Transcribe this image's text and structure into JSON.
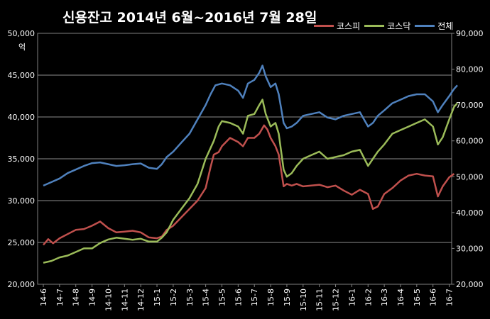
{
  "chart_data": {
    "type": "line",
    "title": "신용잔고 2014년 6월~2016년 7월 28일",
    "unit_label": "억",
    "categories": [
      "14-6",
      "14-7",
      "14-8",
      "14-9",
      "14-10",
      "14-11",
      "14-12",
      "15-1",
      "15-2",
      "15-3",
      "15-4",
      "15-5",
      "15-6",
      "15-7",
      "15-8",
      "15-9",
      "15-10",
      "15-11",
      "15-12",
      "16-1",
      "16-2",
      "16-3",
      "16-4",
      "16-5",
      "16-6",
      "16-7"
    ],
    "left_axis": {
      "min": 20000,
      "max": 50000,
      "ticks": [
        "20,000",
        "25,000",
        "30,000",
        "35,000",
        "40,000",
        "45,000",
        "50,000"
      ]
    },
    "right_axis": {
      "min": 20000,
      "max": 90000,
      "ticks": [
        "20,000",
        "30,000",
        "40,000",
        "50,000",
        "60,000",
        "70,000",
        "80,000",
        "90,000"
      ]
    },
    "grid": true,
    "legend_position": "top-right",
    "series": [
      {
        "name": "코스피",
        "color": "#c0504d",
        "axis": "left",
        "points": [
          [
            0,
            24700
          ],
          [
            0.3,
            25400
          ],
          [
            0.6,
            24900
          ],
          [
            1,
            25500
          ],
          [
            1.5,
            26000
          ],
          [
            2,
            26500
          ],
          [
            2.5,
            26600
          ],
          [
            3,
            27000
          ],
          [
            3.5,
            27500
          ],
          [
            4,
            26700
          ],
          [
            4.5,
            26200
          ],
          [
            5,
            26300
          ],
          [
            5.5,
            26400
          ],
          [
            6,
            26200
          ],
          [
            6.5,
            25600
          ],
          [
            7,
            25500
          ],
          [
            7.3,
            25700
          ],
          [
            7.6,
            26500
          ],
          [
            8,
            27000
          ],
          [
            8.5,
            28000
          ],
          [
            9,
            29000
          ],
          [
            9.5,
            30000
          ],
          [
            10,
            31500
          ],
          [
            10.3,
            34000
          ],
          [
            10.5,
            35500
          ],
          [
            10.8,
            35800
          ],
          [
            11,
            36500
          ],
          [
            11.5,
            37500
          ],
          [
            12,
            37000
          ],
          [
            12.3,
            36500
          ],
          [
            12.6,
            37500
          ],
          [
            13,
            37500
          ],
          [
            13.3,
            38000
          ],
          [
            13.6,
            39000
          ],
          [
            13.8,
            38500
          ],
          [
            14,
            37500
          ],
          [
            14.3,
            36500
          ],
          [
            14.5,
            35500
          ],
          [
            14.8,
            31700
          ],
          [
            15,
            32000
          ],
          [
            15.3,
            31800
          ],
          [
            15.6,
            32000
          ],
          [
            16,
            31700
          ],
          [
            16.5,
            31800
          ],
          [
            17,
            31900
          ],
          [
            17.5,
            31600
          ],
          [
            18,
            31800
          ],
          [
            18.5,
            31200
          ],
          [
            19,
            30700
          ],
          [
            19.5,
            31300
          ],
          [
            20,
            30800
          ],
          [
            20.3,
            29000
          ],
          [
            20.6,
            29300
          ],
          [
            21,
            30800
          ],
          [
            21.5,
            31500
          ],
          [
            22,
            32400
          ],
          [
            22.5,
            33000
          ],
          [
            23,
            33200
          ],
          [
            23.5,
            33000
          ],
          [
            24,
            32900
          ],
          [
            24.3,
            30500
          ],
          [
            24.6,
            31700
          ],
          [
            25,
            32800
          ],
          [
            25.3,
            33200
          ]
        ]
      },
      {
        "name": "코스닥",
        "color": "#9bbb59",
        "axis": "right",
        "points": [
          [
            0,
            26000
          ],
          [
            0.5,
            26500
          ],
          [
            1,
            27500
          ],
          [
            1.5,
            28000
          ],
          [
            2,
            29000
          ],
          [
            2.5,
            30000
          ],
          [
            3,
            30000
          ],
          [
            3.5,
            31500
          ],
          [
            4,
            32500
          ],
          [
            4.5,
            33000
          ],
          [
            5,
            32700
          ],
          [
            5.5,
            32400
          ],
          [
            6,
            32700
          ],
          [
            6.5,
            31900
          ],
          [
            7,
            31900
          ],
          [
            7.3,
            33000
          ],
          [
            7.6,
            34500
          ],
          [
            8,
            38000
          ],
          [
            8.5,
            41000
          ],
          [
            9,
            44000
          ],
          [
            9.5,
            48000
          ],
          [
            10,
            55000
          ],
          [
            10.5,
            60000
          ],
          [
            10.8,
            64000
          ],
          [
            11,
            65500
          ],
          [
            11.5,
            65000
          ],
          [
            12,
            64000
          ],
          [
            12.3,
            62000
          ],
          [
            12.6,
            67000
          ],
          [
            13,
            67500
          ],
          [
            13.3,
            70000
          ],
          [
            13.5,
            71500
          ],
          [
            13.7,
            67500
          ],
          [
            14,
            64000
          ],
          [
            14.3,
            65000
          ],
          [
            14.5,
            62000
          ],
          [
            14.8,
            52000
          ],
          [
            15,
            50000
          ],
          [
            15.3,
            51000
          ],
          [
            15.6,
            53000
          ],
          [
            16,
            55000
          ],
          [
            16.5,
            56000
          ],
          [
            17,
            57000
          ],
          [
            17.5,
            55000
          ],
          [
            18,
            55500
          ],
          [
            18.5,
            56000
          ],
          [
            19,
            57000
          ],
          [
            19.5,
            57500
          ],
          [
            20,
            53000
          ],
          [
            20.3,
            55000
          ],
          [
            20.6,
            57000
          ],
          [
            21,
            59000
          ],
          [
            21.5,
            62000
          ],
          [
            22,
            63000
          ],
          [
            22.5,
            64000
          ],
          [
            23,
            65000
          ],
          [
            23.5,
            66000
          ],
          [
            24,
            64000
          ],
          [
            24.3,
            59000
          ],
          [
            24.6,
            61000
          ],
          [
            25,
            66000
          ],
          [
            25.3,
            69500
          ],
          [
            25.5,
            70500
          ]
        ]
      },
      {
        "name": "전체",
        "color": "#4f81bd",
        "axis": "right",
        "points": [
          [
            0,
            47500
          ],
          [
            0.5,
            48500
          ],
          [
            1,
            49500
          ],
          [
            1.5,
            51000
          ],
          [
            2,
            52000
          ],
          [
            2.5,
            53000
          ],
          [
            3,
            53800
          ],
          [
            3.5,
            54000
          ],
          [
            4,
            53500
          ],
          [
            4.5,
            53000
          ],
          [
            5,
            53200
          ],
          [
            5.5,
            53500
          ],
          [
            6,
            53700
          ],
          [
            6.5,
            52500
          ],
          [
            7,
            52200
          ],
          [
            7.3,
            53500
          ],
          [
            7.6,
            55500
          ],
          [
            8,
            57000
          ],
          [
            8.5,
            59500
          ],
          [
            9,
            62000
          ],
          [
            9.5,
            66000
          ],
          [
            10,
            70000
          ],
          [
            10.3,
            73000
          ],
          [
            10.6,
            75500
          ],
          [
            11,
            76000
          ],
          [
            11.5,
            75500
          ],
          [
            12,
            74000
          ],
          [
            12.3,
            72000
          ],
          [
            12.6,
            76000
          ],
          [
            13,
            77000
          ],
          [
            13.3,
            79000
          ],
          [
            13.5,
            81000
          ],
          [
            13.7,
            78000
          ],
          [
            14,
            75000
          ],
          [
            14.3,
            76000
          ],
          [
            14.5,
            73000
          ],
          [
            14.8,
            65000
          ],
          [
            15,
            63500
          ],
          [
            15.3,
            64000
          ],
          [
            15.6,
            65000
          ],
          [
            16,
            67000
          ],
          [
            16.5,
            67500
          ],
          [
            17,
            68000
          ],
          [
            17.5,
            66500
          ],
          [
            18,
            66000
          ],
          [
            18.5,
            67000
          ],
          [
            19,
            67500
          ],
          [
            19.5,
            68000
          ],
          [
            20,
            64000
          ],
          [
            20.3,
            65000
          ],
          [
            20.6,
            67000
          ],
          [
            21,
            68500
          ],
          [
            21.5,
            70500
          ],
          [
            22,
            71500
          ],
          [
            22.5,
            72500
          ],
          [
            23,
            73000
          ],
          [
            23.5,
            73000
          ],
          [
            24,
            71000
          ],
          [
            24.3,
            68000
          ],
          [
            24.6,
            70000
          ],
          [
            25,
            72500
          ],
          [
            25.3,
            74500
          ],
          [
            25.5,
            75500
          ]
        ]
      }
    ]
  }
}
